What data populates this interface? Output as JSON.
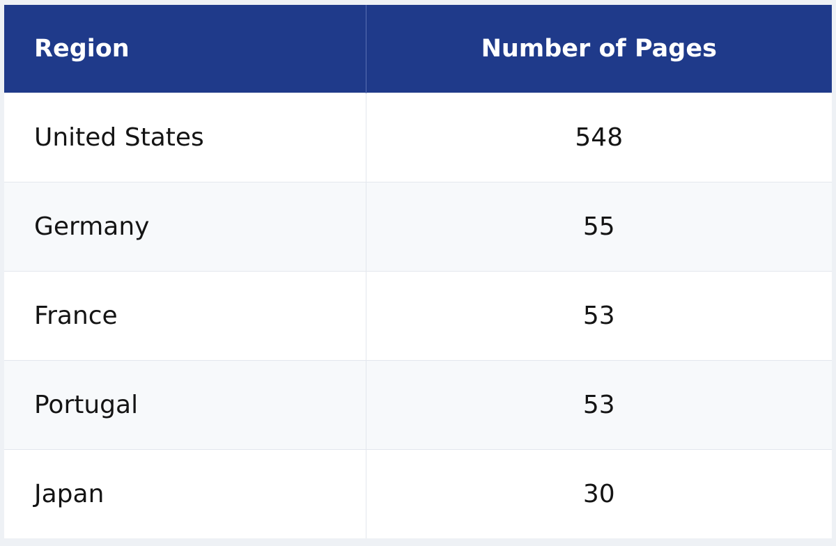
{
  "table": {
    "headers": {
      "region": "Region",
      "pages": "Number of Pages"
    },
    "rows": [
      {
        "region": "United States",
        "pages": "548"
      },
      {
        "region": "Germany",
        "pages": "55"
      },
      {
        "region": "France",
        "pages": "53"
      },
      {
        "region": "Portugal",
        "pages": "53"
      },
      {
        "region": "Japan",
        "pages": "30"
      }
    ],
    "colors": {
      "header_bg": "#1f3a8a",
      "header_text": "#ffffff",
      "row_alt_bg": "#f7f9fb",
      "border": "#e3e7ed"
    }
  }
}
